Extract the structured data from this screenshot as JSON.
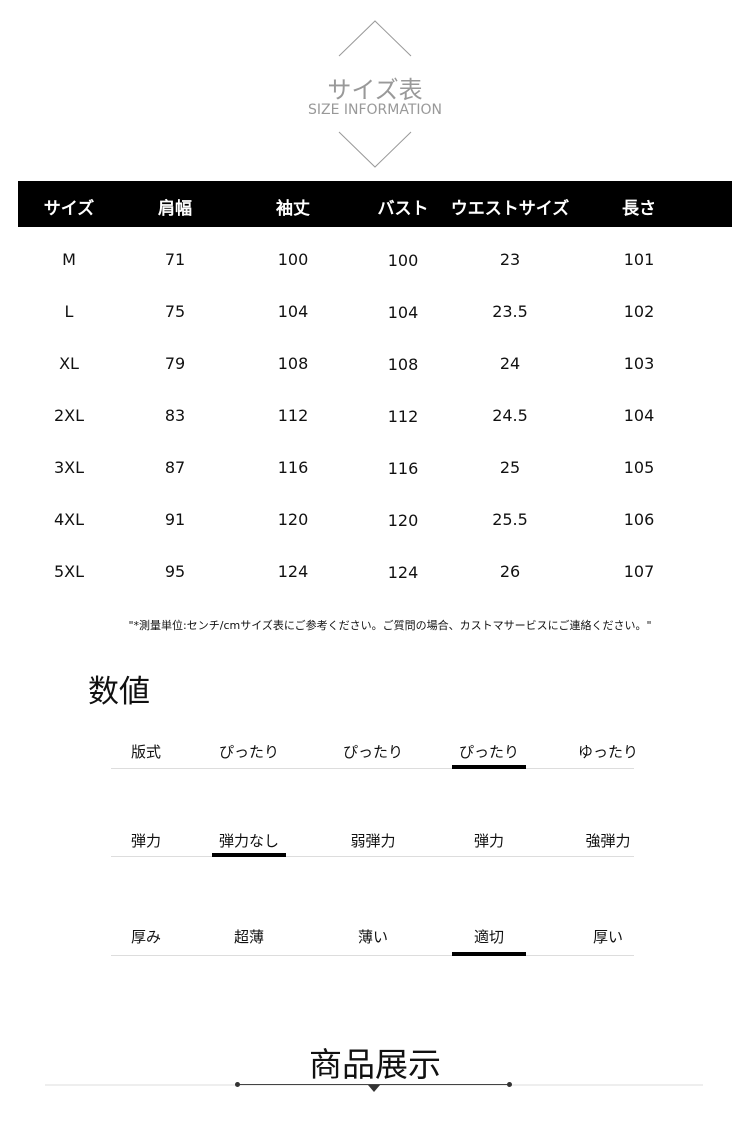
{
  "banner": {
    "title": "サイズ表",
    "subtitle": "SIZE INFORMATION"
  },
  "table": {
    "headers": [
      "サイズ",
      "肩幅",
      "袖丈",
      "バスト",
      "ウエストサイズ",
      "長さ"
    ],
    "rows": [
      [
        "M",
        "71",
        "100",
        "100",
        "23",
        "101"
      ],
      [
        "L",
        "75",
        "104",
        "104",
        "23.5",
        "102"
      ],
      [
        "XL",
        "79",
        "108",
        "108",
        "24",
        "103"
      ],
      [
        "2XL",
        "83",
        "112",
        "112",
        "24.5",
        "104"
      ],
      [
        "3XL",
        "87",
        "116",
        "116",
        "25",
        "105"
      ],
      [
        "4XL",
        "91",
        "120",
        "120",
        "25.5",
        "106"
      ],
      [
        "5XL",
        "95",
        "124",
        "124",
        "26",
        "107"
      ]
    ]
  },
  "note": "\"*測量単位:センチ/cmサイズ表にご参考ください。ご質問の場合、カストマサービスにご連絡ください。\"",
  "values_section": {
    "title": "数値",
    "attributes": [
      {
        "label": "版式",
        "options": [
          "ぴったり",
          "ぴったり",
          "ぴったり",
          "ゆったり"
        ],
        "selected_index": 2
      },
      {
        "label": "弾力",
        "options": [
          "弾力なし",
          "弱弾力",
          "弾力",
          "強弾力"
        ],
        "selected_index": 0
      },
      {
        "label": "厚み",
        "options": [
          "超薄",
          "薄い",
          "適切",
          "厚い"
        ],
        "selected_index": 2
      }
    ]
  },
  "product_section": {
    "title": "商品展示"
  }
}
